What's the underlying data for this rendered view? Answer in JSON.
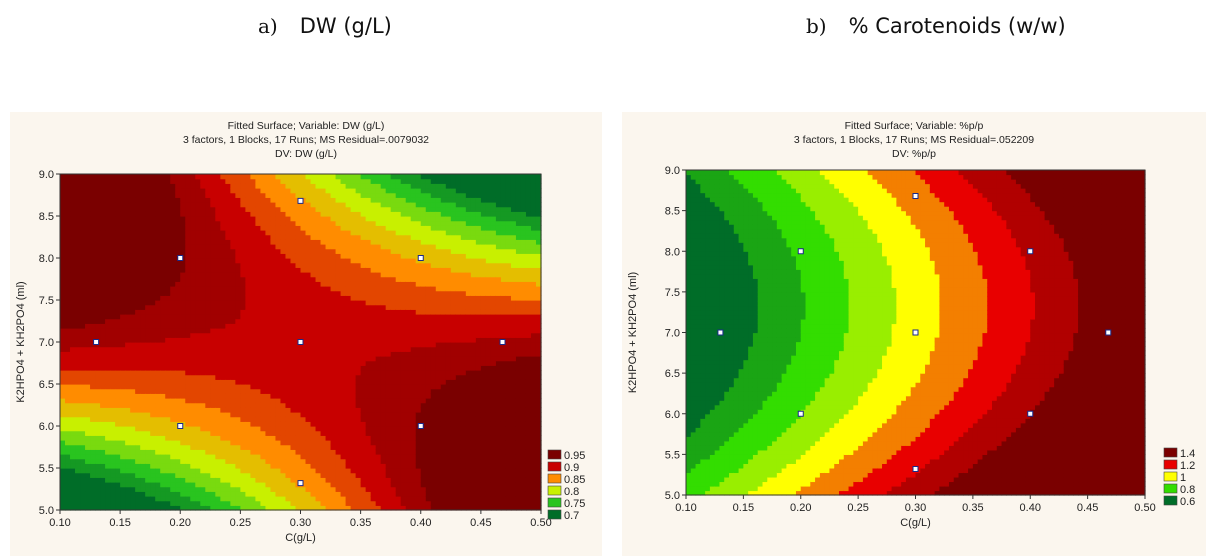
{
  "captions": {
    "a": {
      "label": "a)",
      "text": "DW (g/L)"
    },
    "b": {
      "label": "b)",
      "text": "% Carotenoids (w/w)"
    }
  },
  "chart_data": [
    {
      "type": "heatmap",
      "title_lines": [
        "Fitted Surface; Variable: DW (g/L)",
        "3 factors, 1 Blocks, 17 Runs; MS Residual=.0079032",
        "DV: DW (g/L)"
      ],
      "xlabel": "C(g/L)",
      "ylabel": "K2HPO4 + KH2PO4 (ml)",
      "xlim": [
        0.1,
        0.5
      ],
      "ylim": [
        5.0,
        9.0
      ],
      "xticks": [
        "0.10",
        "0.15",
        "0.20",
        "0.25",
        "0.30",
        "0.35",
        "0.40",
        "0.45",
        "0.50"
      ],
      "yticks": [
        "5.0",
        "5.5",
        "6.0",
        "6.5",
        "7.0",
        "7.5",
        "8.0",
        "8.5",
        "9.0"
      ],
      "legend": {
        "placement": "bottom-right",
        "labels": [
          "0.95",
          "0.9",
          "0.85",
          "0.8",
          "0.75",
          "0.7"
        ],
        "colors": [
          "#7a0000",
          "#c80000",
          "#ff8c00",
          "#c8f000",
          "#29c41f",
          "#006d28"
        ]
      },
      "surface": {
        "type": "saddle",
        "center": [
          0.3,
          7.0
        ],
        "a": 0.45,
        "b": -0.012
      },
      "points": [
        {
          "x": 0.13,
          "y": 7.0
        },
        {
          "x": 0.2,
          "y": 8.0
        },
        {
          "x": 0.2,
          "y": 6.0
        },
        {
          "x": 0.3,
          "y": 8.68
        },
        {
          "x": 0.3,
          "y": 7.0
        },
        {
          "x": 0.3,
          "y": 5.32
        },
        {
          "x": 0.4,
          "y": 8.0
        },
        {
          "x": 0.4,
          "y": 6.0
        },
        {
          "x": 0.468,
          "y": 7.0
        }
      ]
    },
    {
      "type": "heatmap",
      "title_lines": [
        "Fitted Surface; Variable: %p/p",
        "3 factors, 1 Blocks, 17 Runs; MS Residual=.052209",
        "DV: %p/p"
      ],
      "xlabel": "C(g/L)",
      "ylabel": "K2HPO4 + KH2PO4 (ml)",
      "xlim": [
        0.1,
        0.5
      ],
      "ylim": [
        5.0,
        9.0
      ],
      "xticks": [
        "0.10",
        "0.15",
        "0.20",
        "0.25",
        "0.30",
        "0.35",
        "0.40",
        "0.45",
        "0.50"
      ],
      "yticks": [
        "5.0",
        "5.5",
        "6.0",
        "6.5",
        "7.0",
        "7.5",
        "8.0",
        "8.5",
        "9.0"
      ],
      "legend": {
        "placement": "bottom-right",
        "labels": [
          "1.4",
          "1.2",
          "1",
          "0.8",
          "0.6"
        ],
        "colors": [
          "#7a0000",
          "#e80000",
          "#ffff00",
          "#33dd00",
          "#006d28"
        ]
      },
      "surface": {
        "type": "parabolic",
        "center_y": 7.0,
        "base": 0.5,
        "slope": 2.5,
        "curv": 0.06,
        "tilt": -0.04
      },
      "points": [
        {
          "x": 0.13,
          "y": 7.0
        },
        {
          "x": 0.2,
          "y": 8.0
        },
        {
          "x": 0.2,
          "y": 6.0
        },
        {
          "x": 0.3,
          "y": 8.68
        },
        {
          "x": 0.3,
          "y": 7.0
        },
        {
          "x": 0.3,
          "y": 5.32
        },
        {
          "x": 0.4,
          "y": 8.0
        },
        {
          "x": 0.4,
          "y": 6.0
        },
        {
          "x": 0.468,
          "y": 7.0
        }
      ]
    }
  ]
}
